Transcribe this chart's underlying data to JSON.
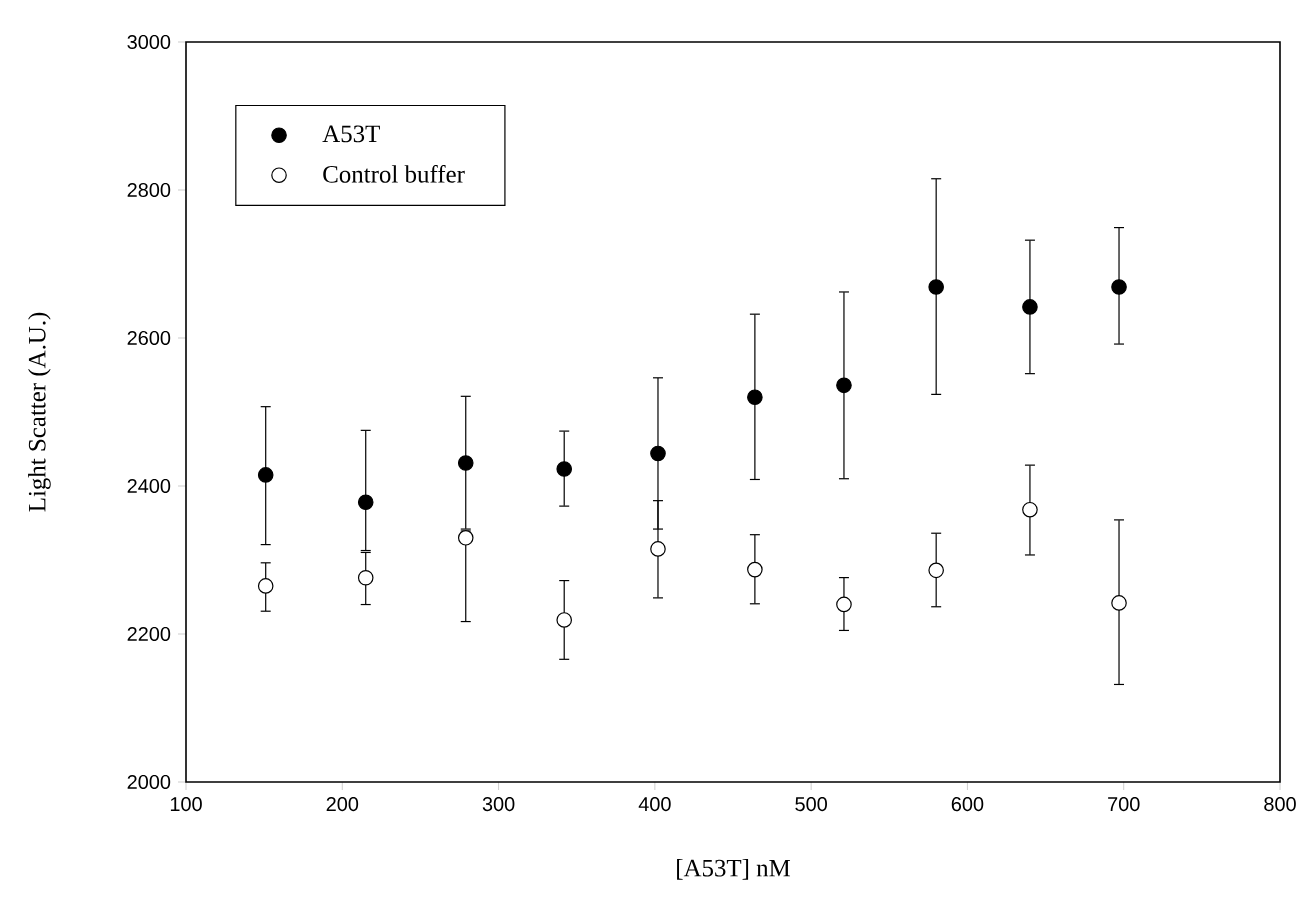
{
  "chart_data": {
    "type": "scatter",
    "xlabel": "[A53T] nM",
    "ylabel": "Light Scatter (A.U.)",
    "xlim": [
      100,
      800
    ],
    "xticks": [
      100,
      200,
      300,
      400,
      500,
      600,
      700,
      800
    ],
    "ylim": [
      2000,
      3000
    ],
    "yticks": [
      2000,
      2200,
      2400,
      2600,
      2800,
      3000
    ],
    "grid": false,
    "legend": "top left",
    "series": [
      {
        "name": "A53T",
        "color": "#000000",
        "marker": "circle",
        "x": [
          151,
          215,
          279,
          342,
          402,
          464,
          521,
          580,
          640,
          697
        ],
        "values": [
          2415,
          2378,
          2431,
          2423,
          2444,
          2520,
          2536,
          2669,
          2642,
          2669
        ],
        "errors": [
          [
            2320,
            2508
          ],
          [
            2312,
            2476
          ],
          [
            2341,
            2522
          ],
          [
            2372,
            2475
          ],
          [
            2341,
            2547
          ],
          [
            2408,
            2633
          ],
          [
            2409,
            2663
          ],
          [
            2523,
            2816
          ],
          [
            2551,
            2733
          ],
          [
            2591,
            2750
          ]
        ]
      },
      {
        "name": "Control buffer",
        "color": "#ffffff",
        "marker": "circle",
        "x": [
          151,
          215,
          279,
          342,
          402,
          464,
          521,
          580,
          640,
          697
        ],
        "values": [
          2265,
          2276,
          2330,
          2219,
          2315,
          2287,
          2240,
          2286,
          2368,
          2242
        ],
        "errors": [
          [
            2230,
            2297
          ],
          [
            2239,
            2311
          ],
          [
            2216,
            2340
          ],
          [
            2165,
            2273
          ],
          [
            2248,
            2381
          ],
          [
            2240,
            2335
          ],
          [
            2204,
            2277
          ],
          [
            2236,
            2337
          ],
          [
            2306,
            2429
          ],
          [
            2131,
            2355
          ]
        ]
      }
    ]
  }
}
